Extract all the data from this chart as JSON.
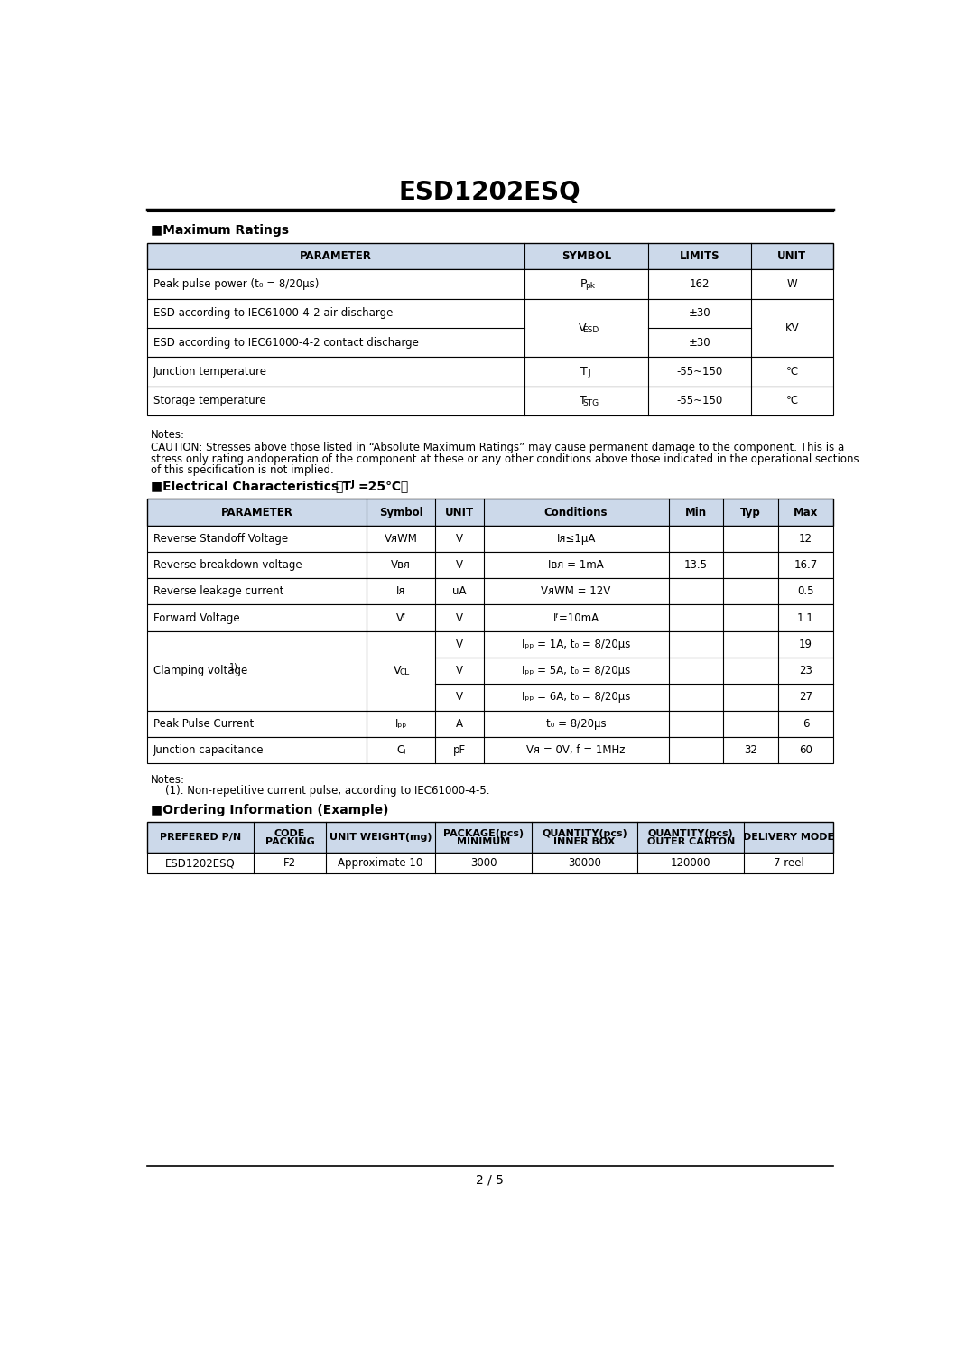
{
  "title": "ESD1202ESQ",
  "page": "2 / 5",
  "bg_color": "#ffffff",
  "header_bg": "#ccd9ea",
  "section_max_ratings": "Maximum Ratings",
  "max_ratings_headers": [
    "PARAMETER",
    "SYMBOL",
    "LIMITS",
    "UNIT"
  ],
  "section_elec_title": "Electrical Characteristics",
  "elec_headers": [
    "PARAMETER",
    "Symbol",
    "UNIT",
    "Conditions",
    "Min",
    "Typ",
    "Max"
  ],
  "section_ordering": "Ordering Information (Example)",
  "ordering_headers": [
    "PREFERED P/N",
    "PACKING\nCODE",
    "UNIT WEIGHT(mg)",
    "MINIMUM\nPACKAGE(pcs)",
    "INNER BOX\nQUANTITY(pcs)",
    "OUTER CARTON\nQUANTITY(pcs)",
    "DELIVERY MODE"
  ],
  "ordering_rows": [
    [
      "ESD1202ESQ",
      "F2",
      "Approximate 10",
      "3000",
      "30000",
      "120000",
      "7 reel"
    ]
  ]
}
